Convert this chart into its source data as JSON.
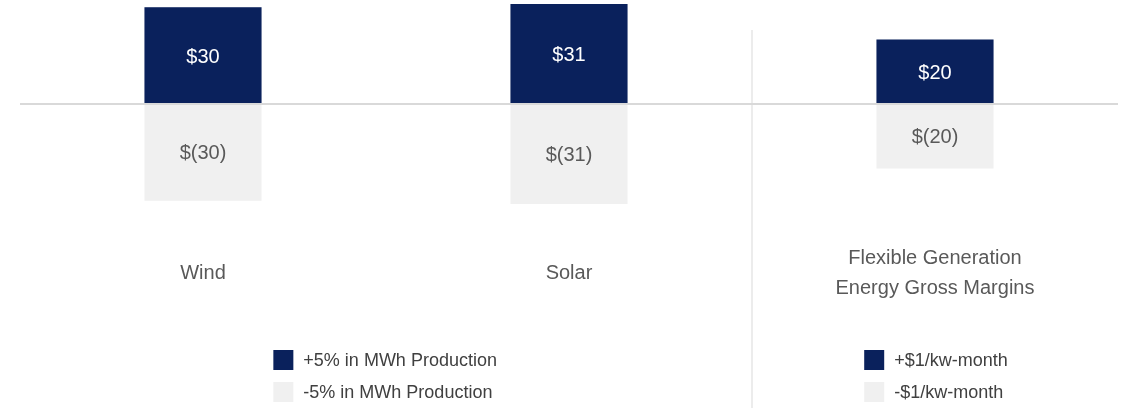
{
  "chart_data": {
    "type": "bar",
    "stacked": true,
    "legend": "bottom",
    "categories": [
      "Wind",
      "Solar",
      "Flexible Generation Energy Gross Margins"
    ],
    "series": [
      {
        "name": "+5% in MWh Production",
        "color": "#0a215c",
        "values": [
          30,
          31,
          null
        ],
        "value_labels": [
          "$30",
          "$31",
          null
        ]
      },
      {
        "name": "-5% in MWh Production",
        "color": "#f0f0f0",
        "values": [
          -30,
          -31,
          null
        ],
        "value_labels": [
          "$(30)",
          "$(31)",
          null
        ]
      },
      {
        "name": "+$1/kw-month",
        "color": "#0a215c",
        "values": [
          null,
          null,
          20
        ],
        "value_labels": [
          null,
          null,
          "$20"
        ]
      },
      {
        "name": "-$1/kw-month",
        "color": "#f0f0f0",
        "values": [
          null,
          null,
          -20
        ],
        "value_labels": [
          null,
          null,
          "$(20)"
        ]
      }
    ]
  }
}
